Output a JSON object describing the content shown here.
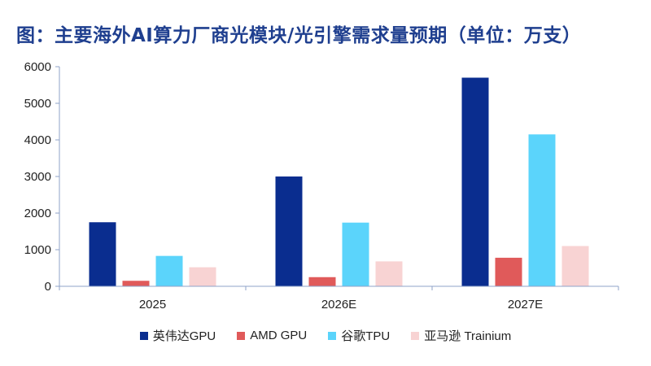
{
  "chart_data": {
    "type": "bar",
    "title": "图：主要海外AI算力厂商光模块/光引擎需求量预期（单位：万支）",
    "categories": [
      "2025",
      "2026E",
      "2027E"
    ],
    "series": [
      {
        "name": "英伟达GPU",
        "color": "#0a2d8f",
        "values": [
          1750,
          3000,
          5700
        ]
      },
      {
        "name": "AMD GPU",
        "color": "#e05a5a",
        "values": [
          150,
          250,
          780
        ]
      },
      {
        "name": "谷歌TPU",
        "color": "#5bd4fb",
        "values": [
          830,
          1740,
          4150
        ]
      },
      {
        "name": "亚马逊 Trainium",
        "color": "#f8d3d3",
        "values": [
          520,
          680,
          1100
        ]
      }
    ],
    "yticks": [
      "0",
      "1000",
      "2000",
      "3000",
      "4000",
      "5000",
      "6000"
    ],
    "ylim": [
      0,
      6000
    ],
    "grid": false,
    "legend_position": "bottom",
    "axis_color": "#8fa3c8"
  }
}
